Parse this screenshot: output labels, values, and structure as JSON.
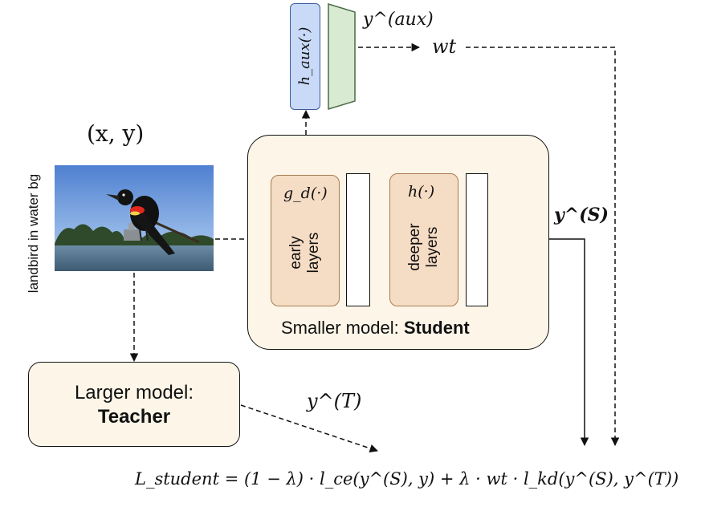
{
  "input": {
    "pair_label": "(x, y)",
    "caption": "landbird in water bg"
  },
  "aux": {
    "head_label": "h_aux(·)",
    "output_label": "y^(aux)",
    "weight_label": "wt"
  },
  "student": {
    "title_prefix": "Smaller model: ",
    "title_bold": "Student",
    "early_func": "g_d(·)",
    "early_label_line1": "early",
    "early_label_line2": "layers",
    "deep_func": "h(·)",
    "deep_label_line1": "deeper",
    "deep_label_line2": "layers",
    "output_label": "y^(S)"
  },
  "teacher": {
    "title_line1": "Larger model:",
    "title_bold": "Teacher",
    "output_label": "y^(T)"
  },
  "loss": {
    "formula": "L_student = (1 − λ) · l_ce(y^(S), y) + λ · wt · l_kd(y^(S), y^(T))"
  },
  "colors": {
    "student_box_fill": "#fdf6e8",
    "layer_fill": "#f5dcc4",
    "layer_stroke": "#a67c52",
    "aux_head_fill": "#c9daf8",
    "aux_head_stroke": "#3c5a9a",
    "green_fill": "#d9ead3",
    "green_stroke": "#4a6b45"
  }
}
